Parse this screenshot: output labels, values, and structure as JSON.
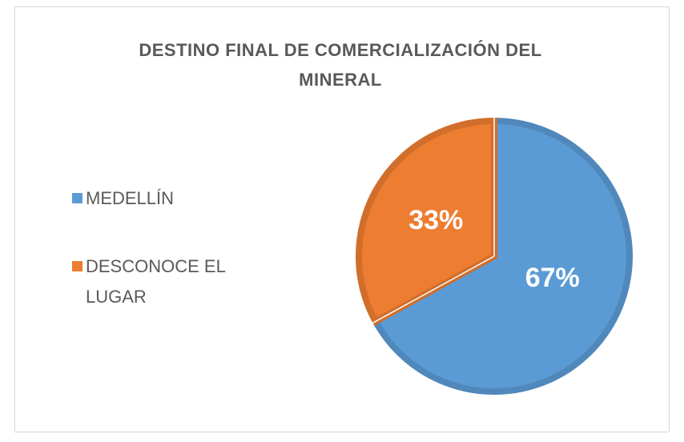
{
  "chart_data": {
    "type": "pie",
    "title": "DESTINO FINAL DE COMERCIALIZACIÓN DEL MINERAL",
    "categories": [
      "MEDELLÍN",
      "DESCONOCE EL LUGAR"
    ],
    "values": [
      67,
      33
    ],
    "value_labels": [
      "67%",
      "33%"
    ],
    "colors": [
      "#5b9bd5",
      "#ed7d31"
    ],
    "legend": "left"
  }
}
